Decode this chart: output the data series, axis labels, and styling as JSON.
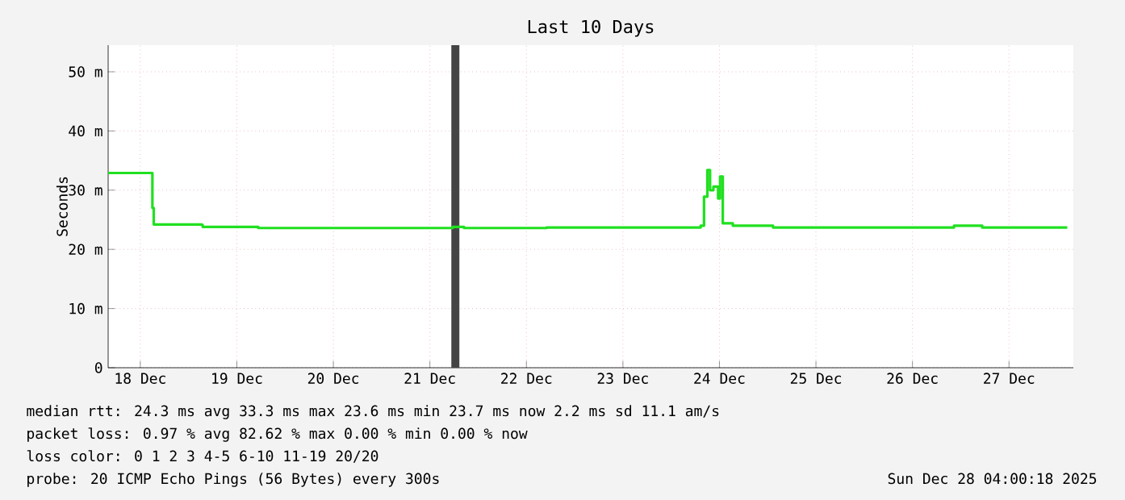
{
  "chart_data": {
    "type": "step",
    "title": "Last 10 Days",
    "ylabel": "Seconds",
    "x": [
      "2025-12-18T04:00",
      "2025-12-18T14:55",
      "2025-12-18T15:00",
      "2025-12-18T15:20",
      "2025-12-19T03:20",
      "2025-12-19T03:30",
      "2025-12-19T17:20",
      "2025-12-21T16:00",
      "2025-12-21T17:40",
      "2025-12-21T19:40",
      "2025-12-21T20:30",
      "2025-12-22T17:00",
      "2025-12-24T07:20",
      "2025-12-24T08:10",
      "2025-12-24T09:00",
      "2025-12-24T09:40",
      "2025-12-24T10:30",
      "2025-12-24T11:40",
      "2025-12-24T12:10",
      "2025-12-24T12:50",
      "2025-12-24T15:20",
      "2025-12-25T01:20",
      "2025-12-26T22:00",
      "2025-12-26T22:20",
      "2025-12-27T05:20",
      "2025-12-28T02:30"
    ],
    "series": [
      {
        "color": "#20e020",
        "values": [
          32.9,
          32.9,
          27,
          24.2,
          24.1,
          23.8,
          23.6,
          23.6,
          23.8,
          23.8,
          23.6,
          23.7,
          24.0,
          28.9,
          33.4,
          30.0,
          30.6,
          28.6,
          32.3,
          24.4,
          24.0,
          23.7,
          23.7,
          24.0,
          23.7,
          23.7
        ]
      }
    ],
    "xlim": [
      "2025-12-18T04:00",
      "2025-12-28T04:00"
    ],
    "xticks": [
      {
        "value": "2025-12-18T12:00",
        "label": "18 Dec"
      },
      {
        "value": "2025-12-19T12:00",
        "label": "19 Dec"
      },
      {
        "value": "2025-12-20T12:00",
        "label": "20 Dec"
      },
      {
        "value": "2025-12-21T12:00",
        "label": "21 Dec"
      },
      {
        "value": "2025-12-22T12:00",
        "label": "22 Dec"
      },
      {
        "value": "2025-12-23T12:00",
        "label": "23 Dec"
      },
      {
        "value": "2025-12-24T12:00",
        "label": "24 Dec"
      },
      {
        "value": "2025-12-25T12:00",
        "label": "25 Dec"
      },
      {
        "value": "2025-12-26T12:00",
        "label": "26 Dec"
      },
      {
        "value": "2025-12-27T12:00",
        "label": "27 Dec"
      }
    ],
    "ylim": [
      0,
      54.5
    ],
    "yticks": [
      {
        "value": 0,
        "label": "0"
      },
      {
        "value": 10,
        "label": "10 m"
      },
      {
        "value": 20,
        "label": "20 m"
      },
      {
        "value": 30,
        "label": "30 m"
      },
      {
        "value": 40,
        "label": "40 m"
      },
      {
        "value": 50,
        "label": "50 m"
      }
    ],
    "grid": true,
    "bands": [
      {
        "axis": "x",
        "from": "2025-12-21T17:20",
        "to": "2025-12-21T19:20",
        "color": "#444444"
      }
    ],
    "annotations": [
      "median rtt:  24.3 ms avg  33.3 ms max  23.6 ms min  23.7 ms now  2.2 ms sd  11.1   am/s",
      "packet loss: 0.97 % avg  82.62 % max  0.00 % min  0.00 % now",
      "loss color:  0  1  2  3  4-5  6-10  11-19  20/20",
      "probe:        20 ICMP Echo Pings (56 Bytes) every 300s",
      "Sun Dec 28 04:00:18 2025"
    ]
  }
}
